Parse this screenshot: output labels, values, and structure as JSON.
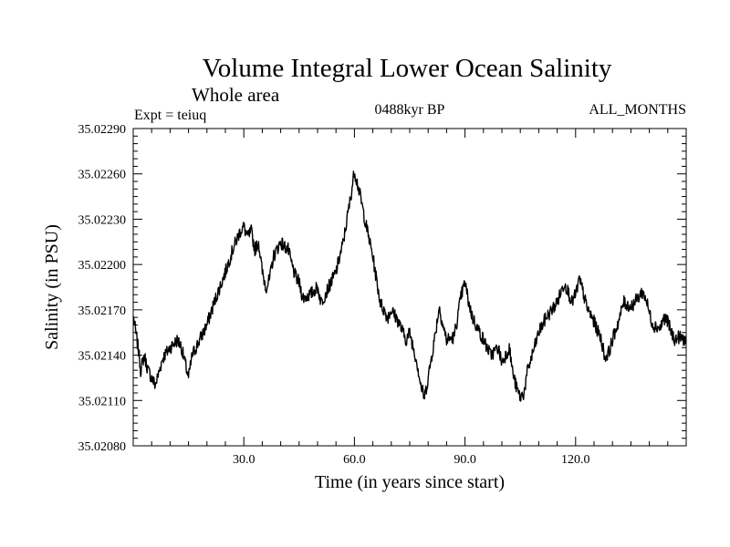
{
  "chart_data": {
    "type": "line",
    "title": "Volume Integral Lower Ocean Salinity",
    "subtitle": "Whole area",
    "experiment_label": "Expt = teiuq",
    "period_label": "0488kyr BP",
    "months_label": "ALL_MONTHS",
    "xlabel": "Time (in years since start)",
    "ylabel": "Salinity (in PSU)",
    "xlim": [
      0,
      150
    ],
    "ylim": [
      35.0208,
      35.0229
    ],
    "xticks": [
      30,
      60,
      90,
      120
    ],
    "xtick_labels": [
      "30.0",
      "60.0",
      "90.0",
      "120.0"
    ],
    "yticks": [
      35.0208,
      35.0211,
      35.0214,
      35.0217,
      35.022,
      35.0223,
      35.0226,
      35.0229
    ],
    "ytick_labels": [
      "35.02080",
      "35.02110",
      "35.02140",
      "35.02170",
      "35.02200",
      "35.02230",
      "35.02260",
      "35.02290"
    ],
    "grid": false,
    "series": [
      {
        "name": "salinity",
        "color": "#000000",
        "x": [
          0,
          1.5,
          2,
          3,
          4,
          5,
          6,
          8,
          10,
          12,
          13,
          15,
          16,
          18,
          20,
          22,
          25,
          27,
          29,
          30,
          31,
          32,
          33,
          34,
          35,
          36,
          37,
          38,
          40,
          41,
          42,
          43,
          44,
          45,
          46,
          48,
          50,
          51,
          53,
          55,
          57,
          58,
          59,
          60,
          61,
          62,
          63,
          65,
          67,
          69,
          70,
          72,
          74,
          75,
          77,
          78,
          79,
          80,
          82,
          83,
          84,
          85,
          87,
          88,
          89,
          90,
          91,
          92,
          93,
          95,
          97,
          99,
          100,
          102,
          103,
          104,
          105,
          106,
          107,
          108,
          110,
          112,
          113,
          115,
          117,
          118,
          119,
          120,
          121,
          122,
          123,
          125,
          127,
          128,
          129,
          130,
          131,
          132,
          133,
          135,
          137,
          138,
          139,
          140,
          141,
          143,
          144,
          145,
          146,
          147,
          148,
          150
        ],
        "values": [
          35.02166,
          35.02142,
          35.0213,
          35.0214,
          35.0213,
          35.02125,
          35.0212,
          35.02138,
          35.02145,
          35.0215,
          35.02146,
          35.02125,
          35.0214,
          35.0215,
          35.0216,
          35.02175,
          35.02195,
          35.0221,
          35.02222,
          35.02225,
          35.02218,
          35.02222,
          35.0221,
          35.02215,
          35.02195,
          35.02185,
          35.0219,
          35.02205,
          35.02215,
          35.02212,
          35.0221,
          35.022,
          35.02192,
          35.02188,
          35.02178,
          35.0218,
          35.02185,
          35.02175,
          35.02185,
          35.02195,
          35.02215,
          35.0223,
          35.02245,
          35.02262,
          35.02252,
          35.0224,
          35.02228,
          35.02205,
          35.02175,
          35.02165,
          35.0217,
          35.02162,
          35.0215,
          35.02155,
          35.02135,
          35.0212,
          35.02112,
          35.02125,
          35.02155,
          35.02172,
          35.0216,
          35.0215,
          35.02152,
          35.02165,
          35.0218,
          35.02188,
          35.02175,
          35.02165,
          35.0216,
          35.0215,
          35.0214,
          35.02145,
          35.02135,
          35.02145,
          35.02128,
          35.02118,
          35.02112,
          35.02115,
          35.0213,
          35.02138,
          35.02155,
          35.02165,
          35.02168,
          35.02175,
          35.02188,
          35.02182,
          35.02175,
          35.0218,
          35.0219,
          35.02182,
          35.02172,
          35.02162,
          35.0215,
          35.02138,
          35.02142,
          35.0215,
          35.02158,
          35.02165,
          35.02175,
          35.02172,
          35.02178,
          35.02182,
          35.02178,
          35.02168,
          35.0216,
          35.02158,
          35.02165,
          35.02162,
          35.02155,
          35.0215,
          35.02152,
          35.0215
        ]
      }
    ]
  }
}
